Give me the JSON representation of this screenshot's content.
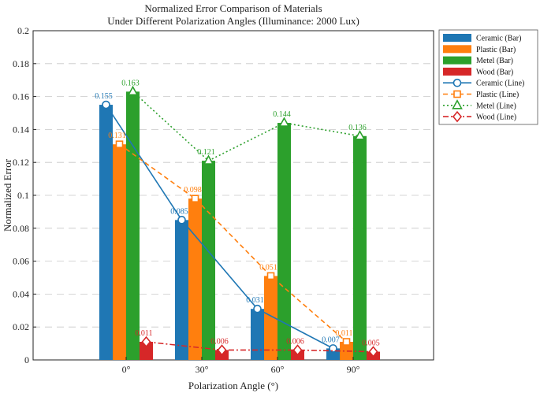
{
  "chart_data": {
    "type": "bar",
    "title": [
      "Normalized Error Comparison of Materials",
      "Under Different Polarization Angles (Illuminance: 2000 Lux)"
    ],
    "xlabel": "Polarization Angle (°)",
    "ylabel": "Normalized Error",
    "categories": [
      "0°",
      "30°",
      "60°",
      "90°"
    ],
    "ylim": [
      0,
      0.2
    ],
    "yticks": [
      "0",
      "0.02",
      "0.04",
      "0.06",
      "0.08",
      "0.1",
      "0.12",
      "0.14",
      "0.16",
      "0.18",
      "0.2"
    ],
    "grid": "horizontal-dashed",
    "legend_position": "outside-top-right",
    "series": [
      {
        "name": "Ceramic",
        "color": "#1f77b4",
        "marker": "circle",
        "line": "solid",
        "values": [
          0.155,
          0.085,
          0.031,
          0.007
        ],
        "labels": [
          "0.155",
          "0.085",
          "0.031",
          "0.007"
        ]
      },
      {
        "name": "Plastic",
        "color": "#ff7f0e",
        "marker": "square",
        "line": "dashed",
        "values": [
          0.131,
          0.098,
          0.051,
          0.011
        ],
        "labels": [
          "0.131",
          "0.098",
          "0.051",
          "0.011"
        ]
      },
      {
        "name": "Metel",
        "color": "#2ca02c",
        "marker": "triangle",
        "line": "dotted",
        "values": [
          0.163,
          0.121,
          0.144,
          0.136
        ],
        "labels": [
          "0.163",
          "0.121",
          "0.144",
          "0.136"
        ]
      },
      {
        "name": "Wood",
        "color": "#d62728",
        "marker": "diamond",
        "line": "dashdot",
        "values": [
          0.011,
          0.006,
          0.006,
          0.005
        ],
        "labels": [
          "0.011",
          "0.006",
          "0.006",
          "0.005"
        ]
      }
    ],
    "legend": [
      "Ceramic (Bar)",
      "Plastic (Bar)",
      "Metel (Bar)",
      "Wood (Bar)",
      "Ceramic (Line)",
      "Plastic (Line)",
      "Metel (Line)",
      "Wood (Line)"
    ]
  }
}
